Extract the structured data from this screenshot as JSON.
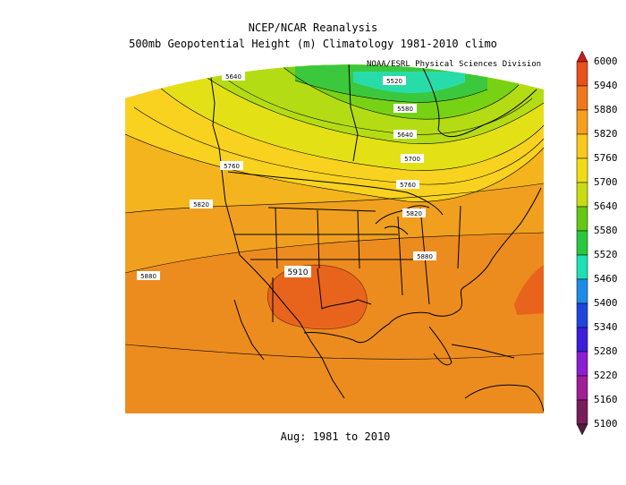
{
  "header": {
    "title": "NCEP/NCAR Reanalysis",
    "subtitle": "500mb Geopotential Height (m) Climatology 1981-2010 climo",
    "credit": "NOAA/ESRL Physical Sciences Division"
  },
  "footer": {
    "period": "Aug: 1981 to 2010"
  },
  "map": {
    "region": "North America",
    "variable": "500mb Geopotential Height",
    "units": "m",
    "contour_labels": {
      "c5520_north": "5520",
      "c5580": "5580",
      "c5640_north": "5640",
      "c5640_west": "5640",
      "c5700": "5700",
      "c5760_west": "5760",
      "c5760_east": "5760",
      "c5820_west": "5820",
      "c5820_east": "5820",
      "c5880_west": "5880",
      "c5880_east": "5880",
      "c5910": "5910"
    }
  },
  "colorbar": {
    "levels": [
      "6000",
      "5940",
      "5880",
      "5820",
      "5760",
      "5700",
      "5640",
      "5580",
      "5520",
      "5460",
      "5400",
      "5340",
      "5280",
      "5220",
      "5160",
      "5100"
    ],
    "colors": [
      "#c81c1c",
      "#e8501c",
      "#f0781c",
      "#f4a01c",
      "#f8c81c",
      "#f0dc14",
      "#c8dc14",
      "#64c814",
      "#28c83c",
      "#1ee0b4",
      "#1e8ce6",
      "#1e46dc",
      "#3c1edc",
      "#8c1ed2",
      "#a01e96",
      "#781e5a",
      "#501e3c"
    ]
  }
}
